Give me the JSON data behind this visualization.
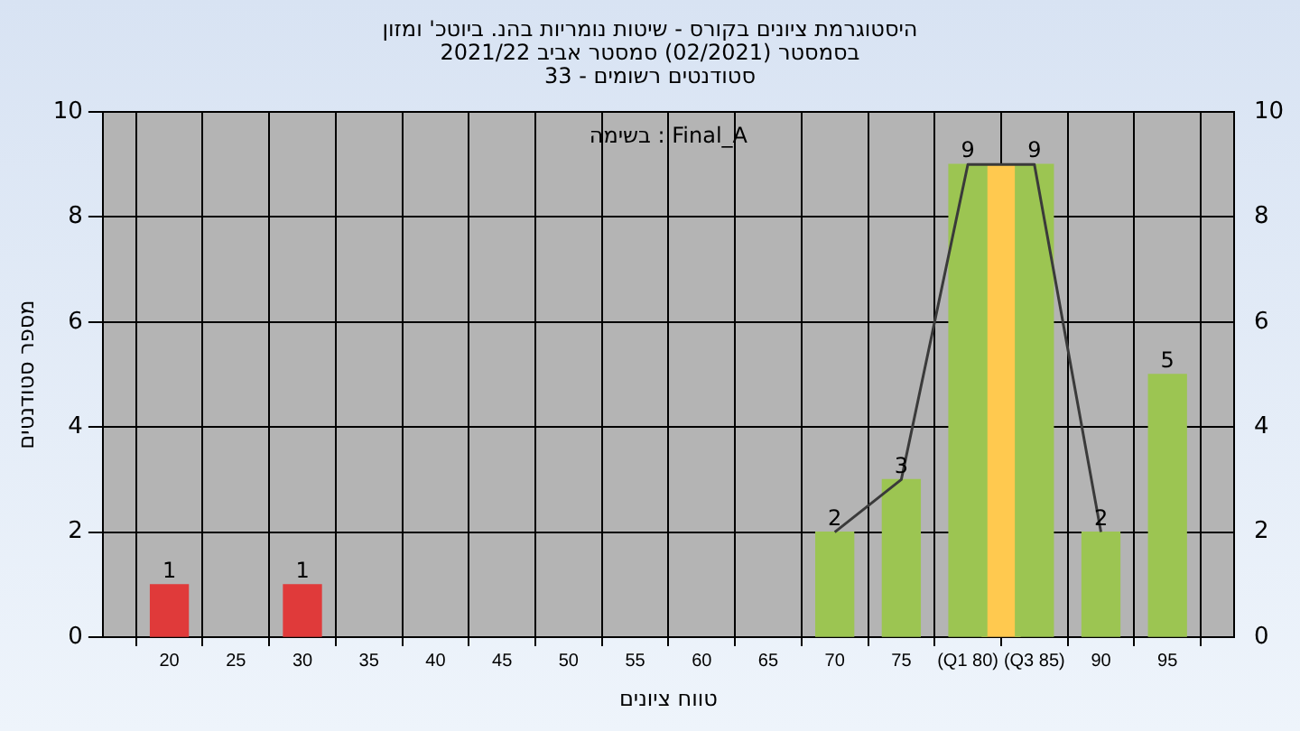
{
  "chart_data": {
    "type": "bar",
    "title": [
      "היסטוגרמת ציונים בקורס - שיטות נומריות בהנ. ביוטכ' ומזון",
      "בסמסטר  (02/2021)  סמסטר אביב 2021/22",
      "סטודנטים רשומים - 33"
    ],
    "xlabel": "טווח ציונים",
    "ylabel": "מספר סטודנטים",
    "annotations": [
      "Final_A : בשימה"
    ],
    "series": [
      {
        "type": "line",
        "color": "#3a3a3a",
        "x": [
          70,
          75,
          80,
          85,
          90
        ],
        "values": [
          2,
          3,
          9,
          9,
          2
        ]
      },
      {
        "color": "#e03a3a",
        "x": [
          20,
          30
        ],
        "values": [
          1,
          1
        ],
        "value_labels": [
          "1",
          "1"
        ]
      },
      {
        "color": "#9cc552",
        "x": [
          70,
          75,
          80,
          85,
          90,
          95
        ],
        "values": [
          2,
          3,
          9,
          9,
          2,
          5
        ],
        "value_labels": [
          "2",
          "3",
          "9",
          "9",
          "2",
          "5"
        ]
      },
      {
        "color": "#ffc94f",
        "x": [
          82.5
        ],
        "values": [
          9
        ]
      }
    ],
    "xlim": [
      15,
      100
    ],
    "xticks": [
      20,
      25,
      30,
      35,
      40,
      45,
      50,
      55,
      60,
      65,
      70,
      75,
      {
        "value": 80,
        "label": "(Q1 80)"
      },
      {
        "value": 85,
        "label": "(Q3 85)"
      },
      90,
      95
    ],
    "ylim": [
      0,
      10
    ],
    "yticks": [
      0,
      2,
      4,
      6,
      8,
      10
    ],
    "y2lim": [
      0,
      10
    ],
    "y2ticks": [
      0,
      2,
      4,
      6,
      8,
      10
    ],
    "grid": true,
    "legend": false
  }
}
